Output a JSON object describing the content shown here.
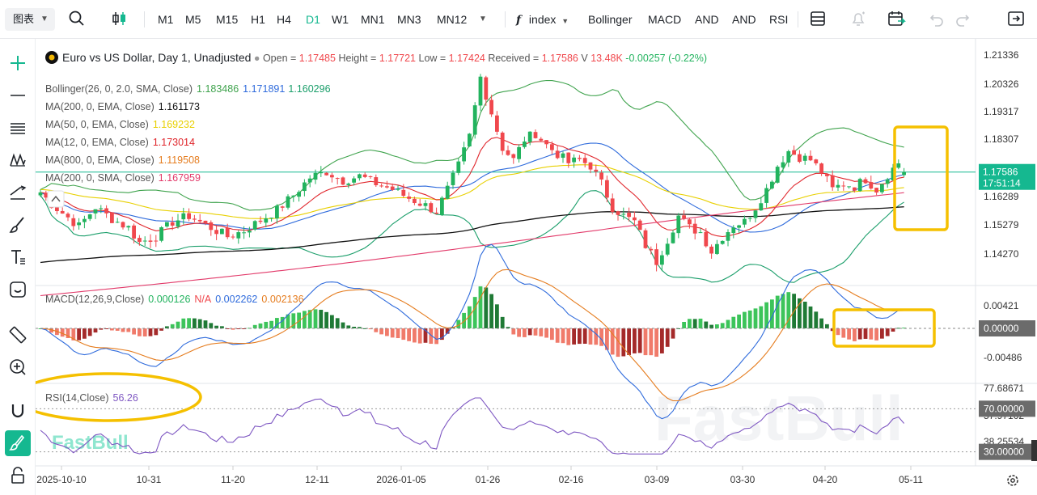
{
  "toolbar": {
    "chart_type": "图表",
    "timeframes": [
      "M1",
      "M5",
      "M15",
      "H1",
      "H4",
      "D1",
      "W1",
      "MN1",
      "MN3",
      "MN12"
    ],
    "active_timeframe": "D1",
    "index_label": "index",
    "indicators": [
      "Bollinger",
      "MACD",
      "AND",
      "AND",
      "RSI"
    ]
  },
  "title": {
    "symbol": "Euro vs US Dollar, Day 1, Unadjusted",
    "open_label": "Open =",
    "open": "1.17485",
    "high_label": "Height =",
    "high": "1.17721",
    "low_label": "Low =",
    "low": "1.17424",
    "close_label": "Received =",
    "close": "1.17586",
    "vol_label": "V",
    "vol": "13.48K",
    "change": "-0.00257 (-0.22%)"
  },
  "legends": [
    {
      "label": "Bollinger(26, 0, 2.0, SMA, Close)",
      "values": [
        {
          "v": "1.183486",
          "c": "#3fa34d"
        },
        {
          "v": "1.171891",
          "c": "#2f6bdc"
        },
        {
          "v": "1.160296",
          "c": "#1a9e6a"
        }
      ]
    },
    {
      "label": "MA(200, 0, EMA, Close)",
      "values": [
        {
          "v": "1.161173",
          "c": "#111111"
        }
      ]
    },
    {
      "label": "MA(50, 0, EMA, Close)",
      "values": [
        {
          "v": "1.169232",
          "c": "#e8d000"
        }
      ]
    },
    {
      "label": "MA(12, 0, EMA, Close)",
      "values": [
        {
          "v": "1.173014",
          "c": "#e0262c"
        }
      ]
    },
    {
      "label": "MA(800, 0, EMA, Close)",
      "values": [
        {
          "v": "1.119508",
          "c": "#e57c1e"
        }
      ]
    },
    {
      "label": "MA(200, 0, SMA, Close)",
      "values": [
        {
          "v": "1.167959",
          "c": "#e23a6a"
        }
      ]
    }
  ],
  "price_axis": [
    "1.21336",
    "1.20326",
    "1.19317",
    "1.18307",
    "1.17298",
    "1.16289",
    "1.15279",
    "1.14270"
  ],
  "last_price": "1.17586",
  "countdown": "17:51:14",
  "macd": {
    "label": "MACD(12,26,9,Close)",
    "v1": "0.000126",
    "v2": "N/A",
    "v3": "0.002262",
    "v4": "0.002136",
    "axis": [
      "0.00421",
      "-0.00486"
    ],
    "zero": "0.00000"
  },
  "rsi": {
    "label": "RSI(14,Close)",
    "value": "56.26",
    "axis": [
      "77.68671",
      "57.97102",
      "38.25534"
    ],
    "upper": "70.00000",
    "lower": "30.00000"
  },
  "dates": [
    "2025-10-10",
    "10-31",
    "11-20",
    "12-11",
    "2026-01-05",
    "01-26",
    "02-16",
    "03-09",
    "03-30",
    "04-20",
    "05-11"
  ],
  "watermark": "FastBull",
  "chart_data": {
    "type": "candlestick",
    "price_range": [
      1.1377,
      1.2188
    ],
    "series": [
      {
        "name": "Bollinger(26, 0, 2.0, SMA, Close)"
      },
      {
        "name": "MA(200, 0, EMA, Close)"
      },
      {
        "name": "MA(50, 0, EMA, Close)"
      },
      {
        "name": "MA(12, 0, EMA, Close)"
      },
      {
        "name": "MA(800, 0, EMA, Close)"
      },
      {
        "name": "MA(200, 0, SMA, Close)"
      }
    ],
    "anchors": [
      [
        0,
        1.169
      ],
      [
        2,
        1.165
      ],
      [
        4,
        1.162
      ],
      [
        7,
        1.1575
      ],
      [
        10,
        1.164
      ],
      [
        13,
        1.16
      ],
      [
        16,
        1.157
      ],
      [
        18,
        1.152
      ],
      [
        21,
        1.154
      ],
      [
        24,
        1.159
      ],
      [
        27,
        1.161
      ],
      [
        31,
        1.157
      ],
      [
        34,
        1.154
      ],
      [
        37,
        1.156
      ],
      [
        40,
        1.1595
      ],
      [
        43,
        1.163
      ],
      [
        46,
        1.168
      ],
      [
        49,
        1.174
      ],
      [
        52,
        1.176
      ],
      [
        55,
        1.173
      ],
      [
        58,
        1.1745
      ],
      [
        61,
        1.172
      ],
      [
        64,
        1.17
      ],
      [
        67,
        1.167
      ],
      [
        70,
        1.1645
      ],
      [
        72,
        1.1625
      ],
      [
        74,
        1.17
      ],
      [
        76,
        1.178
      ],
      [
        78,
        1.188
      ],
      [
        80,
        1.208
      ],
      [
        82,
        1.196
      ],
      [
        84,
        1.184
      ],
      [
        86,
        1.18
      ],
      [
        88,
        1.187
      ],
      [
        90,
        1.189
      ],
      [
        92,
        1.185
      ],
      [
        94,
        1.182
      ],
      [
        96,
        1.179
      ],
      [
        98,
        1.18
      ],
      [
        100,
        1.178
      ],
      [
        102,
        1.172
      ],
      [
        104,
        1.164
      ],
      [
        106,
        1.161
      ],
      [
        108,
        1.159
      ],
      [
        110,
        1.151
      ],
      [
        112,
        1.1455
      ],
      [
        114,
        1.153
      ],
      [
        116,
        1.161
      ],
      [
        118,
        1.157
      ],
      [
        120,
        1.1555
      ],
      [
        122,
        1.149
      ],
      [
        124,
        1.154
      ],
      [
        126,
        1.158
      ],
      [
        128,
        1.159
      ],
      [
        130,
        1.164
      ],
      [
        132,
        1.17
      ],
      [
        134,
        1.178
      ],
      [
        136,
        1.183
      ],
      [
        138,
        1.181
      ],
      [
        140,
        1.18
      ],
      [
        142,
        1.176
      ],
      [
        144,
        1.17
      ],
      [
        146,
        1.172
      ],
      [
        148,
        1.171
      ],
      [
        150,
        1.1735
      ],
      [
        152,
        1.17
      ],
      [
        154,
        1.175
      ],
      [
        156,
        1.179
      ],
      [
        157,
        1.1759
      ]
    ]
  }
}
